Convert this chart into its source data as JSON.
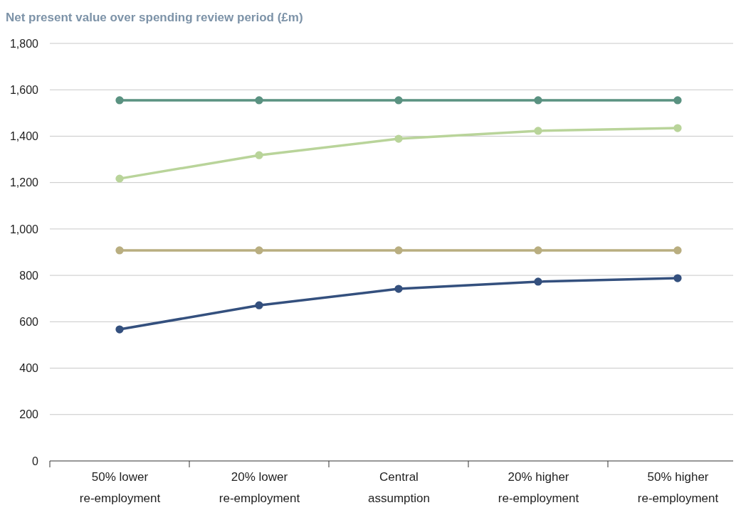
{
  "chart_data": {
    "type": "line",
    "title": "Net present value over spending review period (£m)",
    "categories": [
      "50% lower re-employment",
      "20% lower re-employment",
      "Central assumption",
      "20% higher re-employment",
      "50% higher re-employment"
    ],
    "series": [
      {
        "color": "#5a9281",
        "values": [
          1555,
          1555,
          1555,
          1555,
          1555
        ]
      },
      {
        "color": "#b9d49a",
        "values": [
          1217,
          1318,
          1389,
          1423,
          1435
        ]
      },
      {
        "color": "#b9ae80",
        "values": [
          908,
          908,
          908,
          908,
          908
        ]
      },
      {
        "color": "#34507e",
        "values": [
          567,
          671,
          742,
          773,
          788
        ]
      }
    ],
    "ylim": [
      0,
      1800
    ],
    "yticks": [
      {
        "value": 0,
        "label": "0"
      },
      {
        "value": 200,
        "label": "200"
      },
      {
        "value": 400,
        "label": "400"
      },
      {
        "value": 600,
        "label": "600"
      },
      {
        "value": 800,
        "label": "800"
      },
      {
        "value": 1000,
        "label": "1,000"
      },
      {
        "value": 1200,
        "label": "1,200"
      },
      {
        "value": 1400,
        "label": "1,400"
      },
      {
        "value": 1600,
        "label": "1,600"
      },
      {
        "value": 1800,
        "label": "1,800"
      }
    ],
    "grid": "y",
    "marker": "circle",
    "line_style": "solid"
  }
}
